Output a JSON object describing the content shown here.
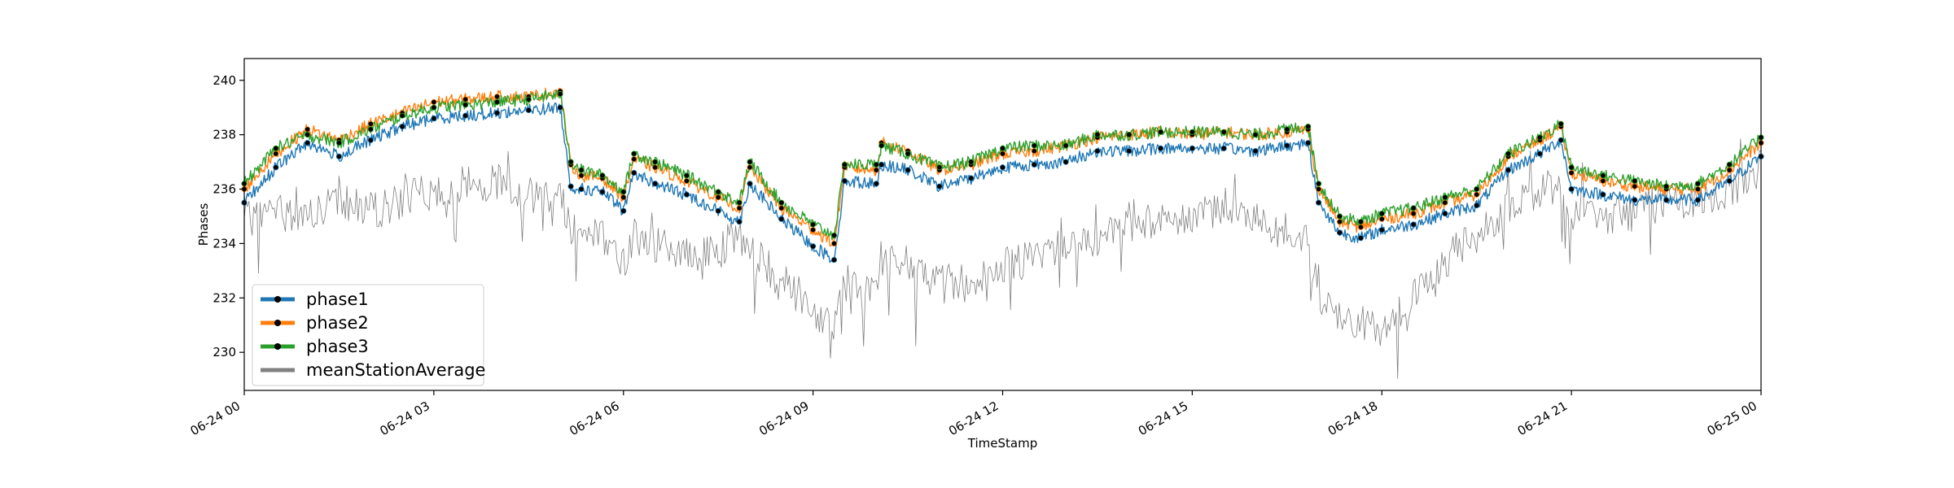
{
  "chart_data": {
    "type": "line",
    "xlabel": "TimeStamp",
    "ylabel": "Phases",
    "xlim": [
      "2024-06-24 00:00",
      "2024-06-25 00:00"
    ],
    "ylim": [
      228.6,
      240.8
    ],
    "xticks": [
      {
        "value": "2024-06-24 00:00",
        "label": "06-24 00"
      },
      {
        "value": "2024-06-24 03:00",
        "label": "06-24 03"
      },
      {
        "value": "2024-06-24 06:00",
        "label": "06-24 06"
      },
      {
        "value": "2024-06-24 09:00",
        "label": "06-24 09"
      },
      {
        "value": "2024-06-24 12:00",
        "label": "06-24 12"
      },
      {
        "value": "2024-06-24 15:00",
        "label": "06-24 15"
      },
      {
        "value": "2024-06-24 18:00",
        "label": "06-24 18"
      },
      {
        "value": "2024-06-24 21:00",
        "label": "06-24 21"
      },
      {
        "value": "2024-06-25 00:00",
        "label": "06-25 00"
      }
    ],
    "yticks": [
      230,
      232,
      234,
      236,
      238,
      240
    ],
    "grid": false,
    "legend": "lower-left",
    "x": [
      "00:00",
      "00:30",
      "01:00",
      "01:30",
      "02:00",
      "02:30",
      "03:00",
      "03:30",
      "04:00",
      "04:30",
      "05:00",
      "05:10",
      "05:20",
      "05:40",
      "06:00",
      "06:10",
      "06:30",
      "07:00",
      "07:30",
      "07:50",
      "08:00",
      "08:30",
      "09:00",
      "09:20",
      "09:30",
      "10:00",
      "10:05",
      "10:30",
      "11:00",
      "11:30",
      "12:00",
      "12:30",
      "13:00",
      "13:30",
      "14:00",
      "14:30",
      "15:00",
      "15:30",
      "16:00",
      "16:30",
      "16:50",
      "17:00",
      "17:20",
      "17:40",
      "18:00",
      "18:30",
      "19:00",
      "19:30",
      "20:00",
      "20:30",
      "20:50",
      "21:00",
      "21:30",
      "22:00",
      "22:30",
      "23:00",
      "23:30",
      "24:00"
    ],
    "series": [
      {
        "name": "phase1",
        "color": "#1f77b4",
        "marker_color": "#000000",
        "values": [
          235.5,
          236.8,
          237.7,
          237.2,
          237.8,
          238.3,
          238.6,
          238.7,
          238.8,
          238.9,
          239.0,
          236.1,
          236.0,
          235.9,
          235.2,
          236.6,
          236.2,
          235.8,
          235.2,
          234.8,
          236.2,
          234.9,
          233.9,
          233.4,
          236.3,
          236.2,
          236.9,
          236.7,
          236.1,
          236.4,
          236.8,
          236.9,
          237.0,
          237.4,
          237.4,
          237.5,
          237.5,
          237.5,
          237.4,
          237.6,
          237.7,
          235.5,
          234.4,
          234.2,
          234.5,
          234.7,
          235.1,
          235.4,
          236.7,
          237.3,
          237.8,
          236.0,
          235.8,
          235.6,
          235.6,
          235.6,
          236.3,
          237.2
        ]
      },
      {
        "name": "phase2",
        "color": "#ff7f0e",
        "marker_color": "#000000",
        "values": [
          236.0,
          237.3,
          238.2,
          237.8,
          238.4,
          238.8,
          239.2,
          239.3,
          239.4,
          239.4,
          239.6,
          236.9,
          236.5,
          236.4,
          235.7,
          237.1,
          236.8,
          236.3,
          235.7,
          235.3,
          236.8,
          235.3,
          234.5,
          234.0,
          236.8,
          236.7,
          237.7,
          237.4,
          236.7,
          236.9,
          237.3,
          237.4,
          237.6,
          237.9,
          238.0,
          238.1,
          238.0,
          238.1,
          238.0,
          238.1,
          238.2,
          236.0,
          234.8,
          234.6,
          234.9,
          235.1,
          235.5,
          235.8,
          237.2,
          237.8,
          238.3,
          236.6,
          236.3,
          236.1,
          236.0,
          236.0,
          236.7,
          237.7
        ]
      },
      {
        "name": "phase3",
        "color": "#2ca02c",
        "marker_color": "#000000",
        "values": [
          236.2,
          237.5,
          238.0,
          237.7,
          238.2,
          238.7,
          239.0,
          239.1,
          239.2,
          239.3,
          239.5,
          237.0,
          236.7,
          236.5,
          235.9,
          237.3,
          237.0,
          236.5,
          235.9,
          235.5,
          237.0,
          235.5,
          234.7,
          234.3,
          236.9,
          236.9,
          237.6,
          237.3,
          236.8,
          237.0,
          237.5,
          237.6,
          237.6,
          238.0,
          238.0,
          238.1,
          238.1,
          238.1,
          238.0,
          238.2,
          238.3,
          236.2,
          235.0,
          234.8,
          235.1,
          235.3,
          235.7,
          236.0,
          237.3,
          237.9,
          238.4,
          236.8,
          236.5,
          236.3,
          236.1,
          236.2,
          236.9,
          237.9
        ]
      },
      {
        "name": "meanStationAverage",
        "color": "#808080",
        "marker_color": null,
        "values": [
          234.8,
          235.2,
          235.0,
          235.5,
          235.2,
          235.6,
          235.9,
          236.2,
          236.3,
          235.8,
          235.9,
          234.6,
          234.7,
          234.2,
          233.3,
          234.3,
          234.0,
          233.5,
          233.8,
          234.3,
          233.6,
          232.8,
          231.5,
          231.0,
          232.6,
          232.0,
          233.5,
          232.9,
          232.7,
          232.5,
          233.2,
          233.4,
          234.1,
          234.0,
          235.0,
          234.8,
          235.0,
          235.5,
          234.8,
          234.4,
          234.0,
          232.2,
          231.2,
          231.0,
          230.9,
          232.0,
          233.4,
          234.3,
          235.3,
          235.9,
          236.2,
          235.2,
          235.0,
          235.1,
          235.6,
          235.4,
          236.0,
          236.8
        ]
      }
    ]
  }
}
